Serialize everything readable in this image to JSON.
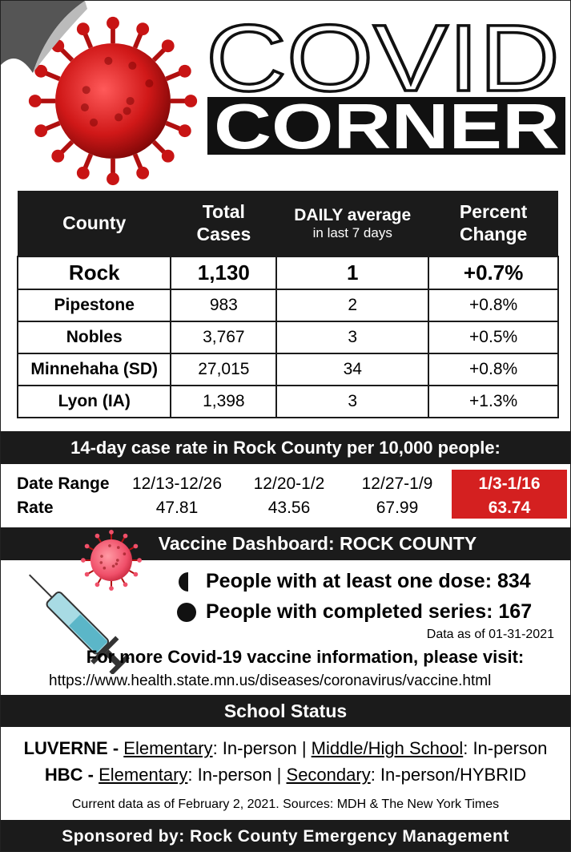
{
  "header": {
    "title_top": "COVID",
    "title_bottom": "CORNER"
  },
  "county_table": {
    "columns": [
      {
        "label": "County"
      },
      {
        "label": "Total Cases"
      },
      {
        "label": "DAILY average",
        "sublabel": "in last 7 days"
      },
      {
        "label": "Percent Change"
      }
    ],
    "rows": [
      [
        "Rock",
        "1,130",
        "1",
        "+0.7%"
      ],
      [
        "Pipestone",
        "983",
        "2",
        "+0.8%"
      ],
      [
        "Nobles",
        "3,767",
        "3",
        "+0.5%"
      ],
      [
        "Minnehaha (SD)",
        "27,015",
        "34",
        "+0.8%"
      ],
      [
        "Lyon (IA)",
        "1,398",
        "3",
        "+1.3%"
      ]
    ]
  },
  "case_rate": {
    "title": "14-day case rate in Rock County per 10,000 people:",
    "row_labels": [
      "Date Range",
      "Rate"
    ],
    "periods": [
      {
        "range": "12/13-12/26",
        "rate": 47.81
      },
      {
        "range": "12/20-1/2",
        "rate": 43.56
      },
      {
        "range": "12/27-1/9",
        "rate": 67.99
      },
      {
        "range": "1/3-1/16",
        "rate": 63.74
      }
    ]
  },
  "vaccine": {
    "title": "Vaccine Dashboard: ROCK COUNTY",
    "items": [
      {
        "label": "People with at least one dose:",
        "value": 834
      },
      {
        "label": "People with completed series:",
        "value": 167
      }
    ],
    "as_of": "Data as of 01-31-2021",
    "more_info": "For more Covid-19 vaccine information, please visit:",
    "url": "https://www.health.state.mn.us/diseases/coronavirus/vaccine.html"
  },
  "school": {
    "title": "School Status",
    "lines": [
      {
        "district": "LUVERNE -",
        "parts": [
          {
            "text": "Elementary",
            "underline": true
          },
          {
            "text": ": In-person | ",
            "underline": false
          },
          {
            "text": "Middle/High School",
            "underline": true
          },
          {
            "text": ": In-person",
            "underline": false
          }
        ]
      },
      {
        "district": "HBC -",
        "parts": [
          {
            "text": "Elementary",
            "underline": true
          },
          {
            "text": ": In-person | ",
            "underline": false
          },
          {
            "text": "Secondary",
            "underline": true
          },
          {
            "text": ": In-person/HYBRID",
            "underline": false
          }
        ]
      }
    ]
  },
  "footer": {
    "sources": "Current data as of February 2, 2021. Sources: MDH & The New York Times",
    "sponsor": "Sponsored by: Rock County Emergency Management"
  }
}
